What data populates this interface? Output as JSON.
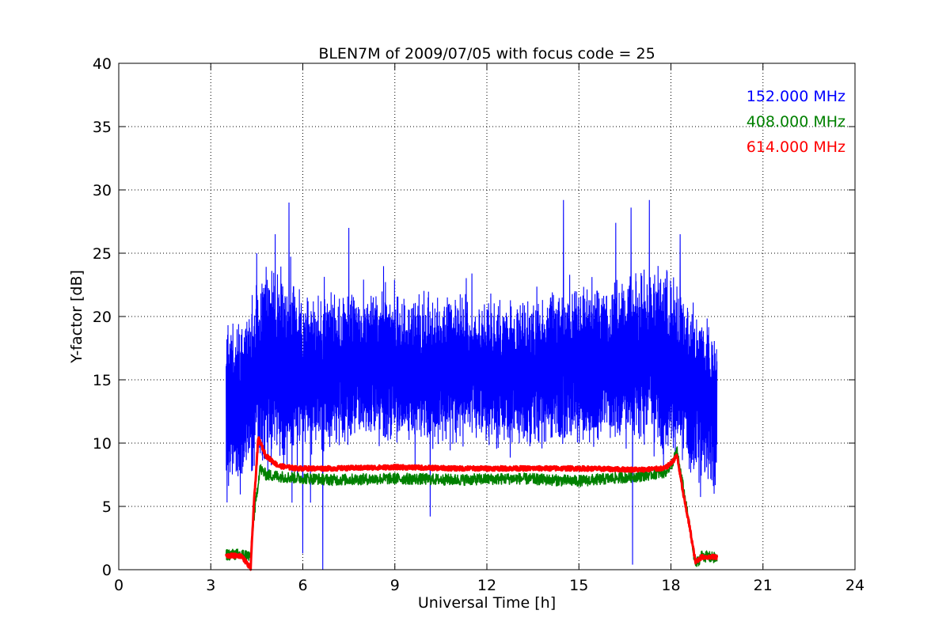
{
  "chart_data": {
    "type": "line",
    "title": "BLEN7M of 2009/07/05 with focus code = 25",
    "xlabel": "Universal Time [h]",
    "ylabel": "Y-factor [dB]",
    "xlim": [
      0,
      24
    ],
    "ylim": [
      0,
      40
    ],
    "xticks": [
      0,
      3,
      6,
      9,
      12,
      15,
      18,
      21,
      24
    ],
    "yticks": [
      0,
      5,
      10,
      15,
      20,
      25,
      30,
      35,
      40
    ],
    "grid": true,
    "legend_position": "top-right",
    "series": [
      {
        "name": "152.000 MHz",
        "color": "#0000ff",
        "x_range": [
          3.5,
          19.5
        ],
        "envelope": {
          "x": [
            3.5,
            4.0,
            4.5,
            5.0,
            5.5,
            6.0,
            7.0,
            8.0,
            9.0,
            10.0,
            11.0,
            12.0,
            13.0,
            14.0,
            15.0,
            16.0,
            17.0,
            17.5,
            18.0,
            18.5,
            19.0,
            19.5
          ],
          "upper": [
            18.5,
            19.5,
            22.5,
            23.5,
            22.5,
            21.0,
            21.0,
            21.5,
            21.0,
            21.0,
            21.0,
            20.5,
            20.5,
            21.0,
            21.5,
            22.0,
            22.5,
            23.0,
            22.5,
            21.0,
            19.5,
            17.5
          ],
          "lower": [
            7.0,
            7.5,
            8.5,
            9.0,
            9.0,
            10.0,
            10.5,
            10.5,
            10.5,
            10.5,
            10.5,
            10.5,
            10.5,
            10.5,
            10.5,
            10.5,
            10.5,
            10.5,
            10.0,
            9.0,
            8.0,
            7.0
          ]
        },
        "spikes": [
          {
            "x": 5.55,
            "y": 29.0
          },
          {
            "x": 5.1,
            "y": 26.5
          },
          {
            "x": 7.5,
            "y": 27.0
          },
          {
            "x": 14.5,
            "y": 29.2
          },
          {
            "x": 16.7,
            "y": 28.6
          },
          {
            "x": 17.3,
            "y": 29.2
          },
          {
            "x": 18.3,
            "y": 26.5
          },
          {
            "x": 4.5,
            "y": 25.0
          },
          {
            "x": 16.2,
            "y": 27.4
          }
        ],
        "dips": [
          {
            "x": 6.0,
            "y": 1.3
          },
          {
            "x": 6.65,
            "y": 0.0
          },
          {
            "x": 10.15,
            "y": 4.2
          },
          {
            "x": 16.75,
            "y": 0.4
          },
          {
            "x": 5.65,
            "y": 5.3
          },
          {
            "x": 6.25,
            "y": 5.3
          }
        ]
      },
      {
        "name": "408.000 MHz",
        "color": "#008000",
        "x": [
          3.5,
          4.0,
          4.3,
          4.4,
          4.6,
          4.8,
          5.5,
          7.0,
          9.0,
          11.0,
          13.0,
          15.0,
          17.0,
          17.8,
          18.0,
          18.2,
          18.4,
          18.6,
          18.8,
          19.0,
          19.5
        ],
        "values": [
          1.2,
          1.2,
          1.1,
          4.0,
          8.0,
          7.5,
          7.3,
          7.1,
          7.2,
          7.1,
          7.2,
          7.0,
          7.4,
          7.7,
          8.2,
          9.3,
          6.5,
          3.5,
          0.4,
          1.1,
          0.9
        ]
      },
      {
        "name": "614.000 MHz",
        "color": "#ff0000",
        "x": [
          3.5,
          4.0,
          4.3,
          4.4,
          4.55,
          4.8,
          5.2,
          5.8,
          7.0,
          9.0,
          11.0,
          13.0,
          15.0,
          17.0,
          17.8,
          18.0,
          18.2,
          18.4,
          18.6,
          18.8,
          19.0,
          19.5
        ],
        "values": [
          1.1,
          1.1,
          0.1,
          5.0,
          10.4,
          9.0,
          8.2,
          8.0,
          8.0,
          8.1,
          8.0,
          8.0,
          8.0,
          7.9,
          8.0,
          8.4,
          9.0,
          6.0,
          3.5,
          0.6,
          1.0,
          1.0
        ]
      }
    ]
  }
}
